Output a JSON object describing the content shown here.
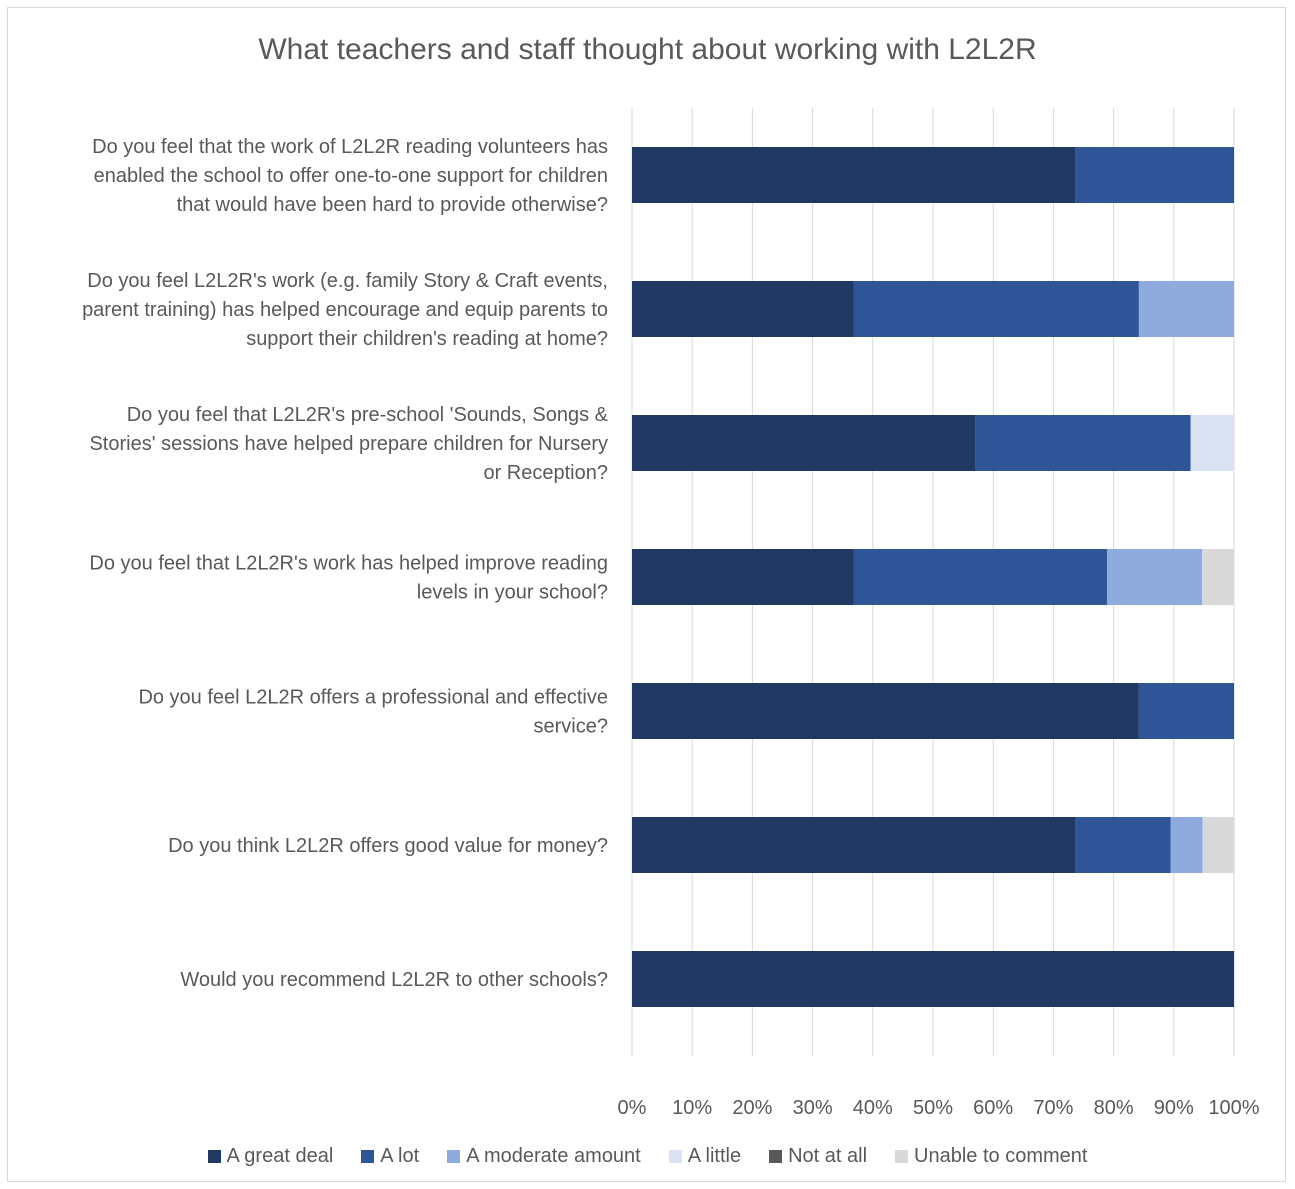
{
  "chart_data": {
    "type": "bar",
    "orientation": "horizontal",
    "stacked": "percent",
    "title": "What teachers and staff thought about working with L2L2R",
    "categories": [
      "Do you feel that the work of L2L2R reading volunteers has enabled the school to offer one-to-one support for children that would have been hard to provide otherwise?",
      "Do you feel L2L2R's work (e.g. family Story & Craft events, parent training) has helped encourage and equip parents to support their children's reading at home?",
      "Do you feel that L2L2R's pre-school 'Sounds, Songs & Stories' sessions have helped prepare children for Nursery or Reception?",
      "Do you feel that L2L2R's work has helped improve reading levels in your school?",
      "Do you feel L2L2R offers a professional and effective service?",
      "Do you think L2L2R offers good value for money?",
      "Would you recommend L2L2R to other schools?"
    ],
    "category_lines": [
      [
        "Do you feel that the work of L2L2R reading volunteers has",
        "enabled the school to offer one-to-one support for children",
        "that would have been hard to provide otherwise?"
      ],
      [
        "Do you feel L2L2R's work (e.g. family Story & Craft events,",
        "parent training) has helped encourage and equip parents to",
        "support their children's reading at home?"
      ],
      [
        "Do you feel that L2L2R's pre-school 'Sounds, Songs &",
        "Stories' sessions have helped prepare children for Nursery",
        "or Reception?"
      ],
      [
        "Do you feel that L2L2R's work has helped improve reading",
        "levels in your school?"
      ],
      [
        "Do you feel L2L2R offers a professional and effective",
        "service?"
      ],
      [
        "Do you think L2L2R offers good value for money?"
      ],
      [
        "Would you recommend L2L2R to other schools?"
      ]
    ],
    "series": [
      {
        "name": "A great deal",
        "color": "#203864",
        "values": [
          73.7,
          36.8,
          57.1,
          36.8,
          84.2,
          73.7,
          100
        ]
      },
      {
        "name": "A lot",
        "color": "#2f5597",
        "values": [
          26.3,
          47.4,
          35.7,
          42.1,
          15.8,
          15.8,
          0
        ]
      },
      {
        "name": "A moderate amount",
        "color": "#8faadc",
        "values": [
          0,
          15.8,
          0,
          15.8,
          0,
          5.3,
          0
        ]
      },
      {
        "name": "A little",
        "color": "#dae3f3",
        "values": [
          0,
          0,
          7.1,
          0,
          0,
          0,
          0
        ]
      },
      {
        "name": "Not at all",
        "color": "#595959",
        "values": [
          0,
          0,
          0,
          0,
          0,
          0,
          0
        ]
      },
      {
        "name": "Unable to comment",
        "color": "#d9d9d9",
        "values": [
          0,
          0,
          0,
          5.3,
          0,
          5.3,
          0
        ]
      }
    ],
    "x_ticks": [
      "0%",
      "10%",
      "20%",
      "30%",
      "40%",
      "50%",
      "60%",
      "70%",
      "80%",
      "90%",
      "100%"
    ],
    "xlim": [
      0,
      100
    ],
    "grid": true,
    "legend_position": "bottom"
  }
}
